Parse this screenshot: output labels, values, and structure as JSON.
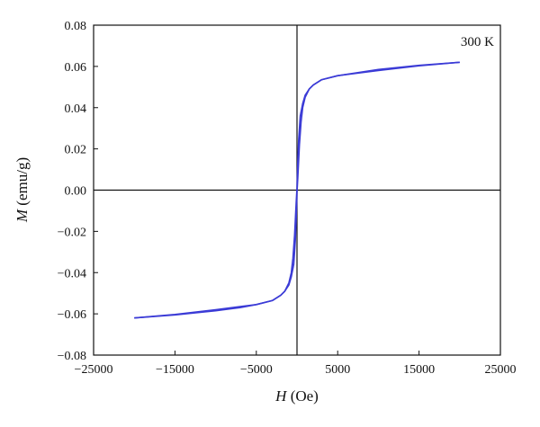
{
  "chart_data": {
    "type": "line",
    "xlabel": "(Oe)",
    "xlabel_var": "H",
    "ylabel": "(emu/g)",
    "ylabel_var": "M",
    "xlim": [
      -25000,
      25000
    ],
    "ylim": [
      -0.08,
      0.08
    ],
    "x_ticks": [
      -25000,
      -15000,
      -5000,
      5000,
      15000,
      25000
    ],
    "x_tick_labels": [
      "−25000",
      "−15000",
      "−5000",
      "5000",
      "15000",
      "25000"
    ],
    "y_ticks": [
      -0.08,
      -0.06,
      -0.04,
      -0.02,
      0.0,
      0.02,
      0.04,
      0.06,
      0.08
    ],
    "y_tick_labels": [
      "−0.08",
      "−0.06",
      "−0.04",
      "−0.02",
      "0.00",
      "0.02",
      "0.04",
      "0.06",
      "0.08"
    ],
    "grid": false,
    "zero_lines": true,
    "annotation": "300 K",
    "series": [
      {
        "color": "#3b3bd6",
        "branches": [
          {
            "x": [
              -20000,
              -15000,
              -10000,
              -7000,
              -5000,
              -3000,
              -2000,
              -1500,
              -1000,
              -700,
              -500,
              -300,
              -200,
              -100,
              0,
              100,
              200,
              400,
              700,
              1000,
              1500,
              2000,
              3000,
              5000,
              10000,
              15000,
              20000
            ],
            "y": [
              -0.062,
              -0.0605,
              -0.0585,
              -0.057,
              -0.0555,
              -0.0535,
              -0.051,
              -0.049,
              -0.045,
              -0.04,
              -0.033,
              -0.022,
              -0.014,
              -0.006,
              0.001,
              0.014,
              0.024,
              0.036,
              0.042,
              0.046,
              0.049,
              0.051,
              0.0535,
              0.0555,
              0.058,
              0.0603,
              0.062
            ]
          },
          {
            "x": [
              -20000,
              -15000,
              -10000,
              -7000,
              -5000,
              -3000,
              -2000,
              -1500,
              -1000,
              -700,
              -400,
              -200,
              -100,
              0,
              100,
              200,
              300,
              500,
              700,
              1000,
              1500,
              2000,
              3000,
              5000,
              10000,
              15000,
              20000
            ],
            "y": [
              -0.062,
              -0.0603,
              -0.058,
              -0.0565,
              -0.0555,
              -0.0535,
              -0.051,
              -0.049,
              -0.046,
              -0.042,
              -0.036,
              -0.024,
              -0.014,
              -0.001,
              0.006,
              0.014,
              0.022,
              0.033,
              0.04,
              0.045,
              0.049,
              0.051,
              0.0535,
              0.0555,
              0.0585,
              0.0605,
              0.062
            ]
          }
        ]
      }
    ]
  }
}
